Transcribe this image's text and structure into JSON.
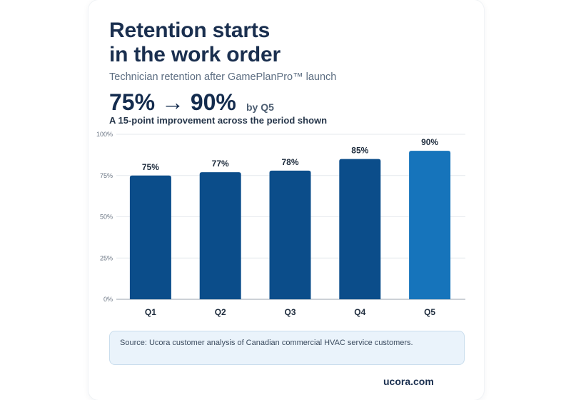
{
  "header": {
    "title_line1": "Retention starts",
    "title_line2": "in the work order",
    "subtitle": "Technician retention after GamePlanPro™ launch",
    "headline": "75% → 90%",
    "headline_note": "by Q5",
    "caption": "A 15-point improvement across the period shown"
  },
  "chart_data": {
    "type": "bar",
    "categories": [
      "Q1",
      "Q2",
      "Q3",
      "Q4",
      "Q5"
    ],
    "values": [
      75,
      77,
      78,
      85,
      90
    ],
    "data_labels": [
      "75%",
      "77%",
      "78%",
      "85%",
      "90%"
    ],
    "ylim": [
      0,
      100
    ],
    "yticks": [
      0,
      25,
      50,
      75,
      100
    ],
    "ytick_labels": [
      "0%",
      "25%",
      "50%",
      "75%",
      "100%"
    ],
    "grid": true,
    "legend": "none",
    "colors": {
      "bar": "#0b4d8a",
      "highlight_bar": "#1674bb",
      "grid": "#e6e9ee",
      "axis": "#9aa3ad"
    },
    "highlight_index": 4
  },
  "footer": {
    "source": "Source: Ucora customer analysis of Canadian commercial HVAC service customers.",
    "brand": "ucora.com"
  }
}
